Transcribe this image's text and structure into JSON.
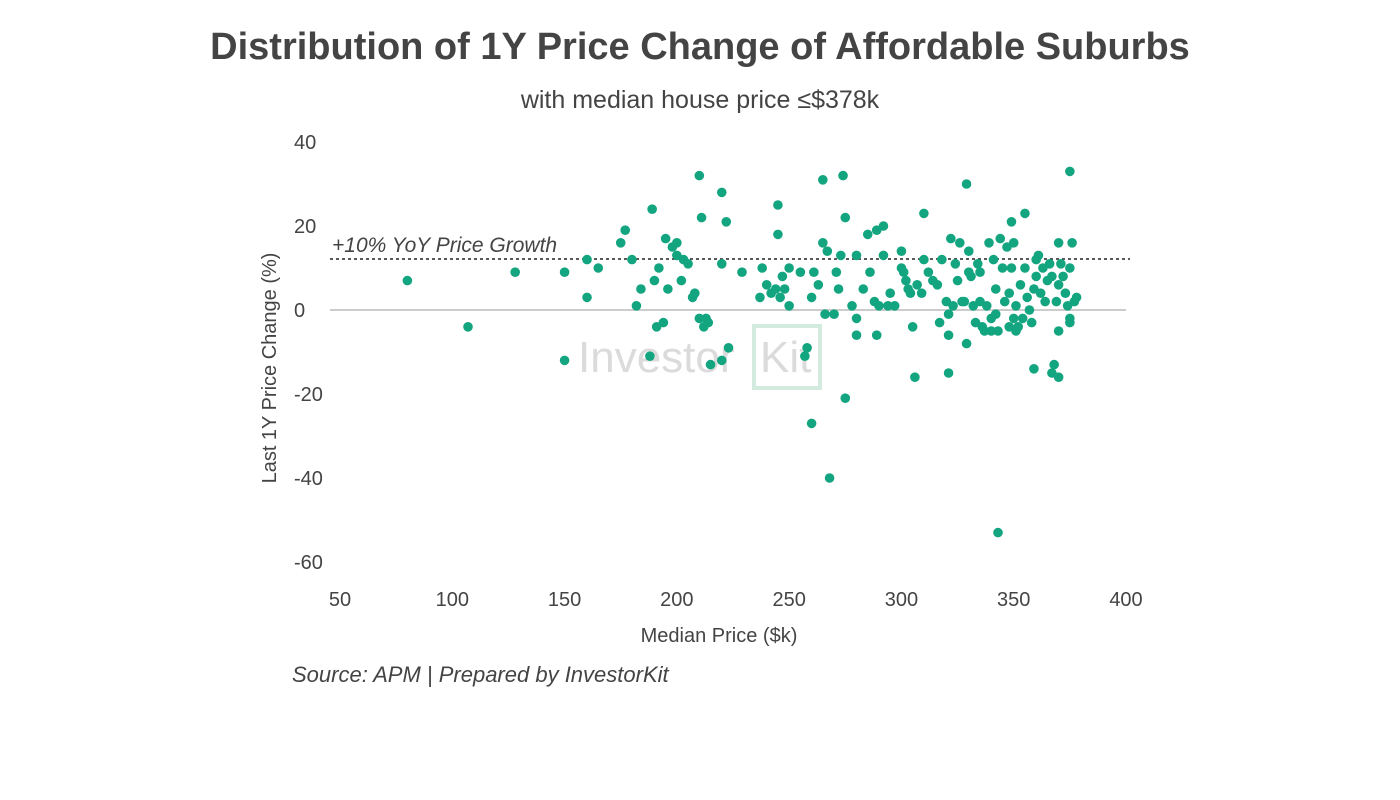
{
  "chart_data": {
    "type": "scatter",
    "title": "Distribution of 1Y Price Change of Affordable Suburbs",
    "subtitle": "with median house price ≤$378k",
    "xlabel": "Median Price ($k)",
    "ylabel": "Last 1Y Price Change (%)",
    "xlim": [
      50,
      400
    ],
    "ylim": [
      -60,
      40
    ],
    "xticks": [
      "50",
      "100",
      "150",
      "200",
      "250",
      "300",
      "350",
      "400"
    ],
    "yticks": [
      "40",
      "20",
      "0",
      "-20",
      "-40",
      "-60"
    ],
    "reference_line": {
      "y": 10,
      "label": "+10% YoY Price Growth"
    },
    "point_color": "#13a57f",
    "points": [
      [
        80,
        7
      ],
      [
        107,
        -4
      ],
      [
        128,
        9
      ],
      [
        150,
        9
      ],
      [
        150,
        -12
      ],
      [
        160,
        12
      ],
      [
        160,
        3
      ],
      [
        165,
        10
      ],
      [
        175,
        16
      ],
      [
        177,
        19
      ],
      [
        180,
        12
      ],
      [
        182,
        1
      ],
      [
        184,
        5
      ],
      [
        188,
        -11
      ],
      [
        189,
        24
      ],
      [
        190,
        7
      ],
      [
        191,
        -4
      ],
      [
        192,
        10
      ],
      [
        194,
        -3
      ],
      [
        195,
        17
      ],
      [
        196,
        5
      ],
      [
        198,
        15
      ],
      [
        200,
        16
      ],
      [
        200,
        13
      ],
      [
        202,
        7
      ],
      [
        203,
        12
      ],
      [
        205,
        11
      ],
      [
        207,
        3
      ],
      [
        208,
        4
      ],
      [
        210,
        32
      ],
      [
        210,
        -2
      ],
      [
        211,
        22
      ],
      [
        212,
        -4
      ],
      [
        213,
        -2
      ],
      [
        214,
        -3
      ],
      [
        215,
        -13
      ],
      [
        220,
        28
      ],
      [
        220,
        -12
      ],
      [
        220,
        11
      ],
      [
        222,
        21
      ],
      [
        223,
        -9
      ],
      [
        229,
        9
      ],
      [
        237,
        3
      ],
      [
        238,
        10
      ],
      [
        240,
        6
      ],
      [
        242,
        4
      ],
      [
        244,
        5
      ],
      [
        245,
        25
      ],
      [
        245,
        18
      ],
      [
        246,
        3
      ],
      [
        247,
        8
      ],
      [
        248,
        5
      ],
      [
        250,
        10
      ],
      [
        250,
        1
      ],
      [
        255,
        9
      ],
      [
        257,
        -11
      ],
      [
        258,
        -9
      ],
      [
        260,
        -27
      ],
      [
        260,
        3
      ],
      [
        261,
        9
      ],
      [
        263,
        6
      ],
      [
        265,
        31
      ],
      [
        265,
        16
      ],
      [
        266,
        -1
      ],
      [
        267,
        14
      ],
      [
        268,
        -40
      ],
      [
        270,
        -1
      ],
      [
        271,
        9
      ],
      [
        272,
        5
      ],
      [
        273,
        13
      ],
      [
        274,
        32
      ],
      [
        275,
        22
      ],
      [
        275,
        -21
      ],
      [
        278,
        1
      ],
      [
        280,
        13
      ],
      [
        280,
        -6
      ],
      [
        280,
        -2
      ],
      [
        283,
        5
      ],
      [
        285,
        18
      ],
      [
        286,
        9
      ],
      [
        288,
        2
      ],
      [
        289,
        19
      ],
      [
        289,
        -6
      ],
      [
        290,
        1
      ],
      [
        292,
        20
      ],
      [
        292,
        13
      ],
      [
        294,
        1
      ],
      [
        295,
        4
      ],
      [
        297,
        1
      ],
      [
        300,
        14
      ],
      [
        300,
        10
      ],
      [
        301,
        9
      ],
      [
        302,
        7
      ],
      [
        303,
        5
      ],
      [
        304,
        4
      ],
      [
        305,
        -4
      ],
      [
        306,
        -16
      ],
      [
        307,
        6
      ],
      [
        309,
        4
      ],
      [
        310,
        23
      ],
      [
        310,
        12
      ],
      [
        312,
        9
      ],
      [
        314,
        7
      ],
      [
        316,
        6
      ],
      [
        317,
        -3
      ],
      [
        318,
        12
      ],
      [
        320,
        2
      ],
      [
        321,
        -1
      ],
      [
        321,
        -15
      ],
      [
        321,
        -6
      ],
      [
        322,
        17
      ],
      [
        323,
        1
      ],
      [
        324,
        11
      ],
      [
        325,
        7
      ],
      [
        326,
        16
      ],
      [
        327,
        2
      ],
      [
        328,
        2
      ],
      [
        329,
        -8
      ],
      [
        329,
        30
      ],
      [
        330,
        14
      ],
      [
        330,
        9
      ],
      [
        331,
        8
      ],
      [
        332,
        1
      ],
      [
        333,
        -3
      ],
      [
        334,
        11
      ],
      [
        335,
        9
      ],
      [
        335,
        2
      ],
      [
        336,
        -4
      ],
      [
        337,
        -5
      ],
      [
        338,
        1
      ],
      [
        339,
        16
      ],
      [
        340,
        -2
      ],
      [
        340,
        -5
      ],
      [
        341,
        12
      ],
      [
        342,
        -1
      ],
      [
        342,
        5
      ],
      [
        343,
        -5
      ],
      [
        343,
        -53
      ],
      [
        344,
        17
      ],
      [
        345,
        10
      ],
      [
        346,
        2
      ],
      [
        347,
        15
      ],
      [
        348,
        4
      ],
      [
        348,
        -4
      ],
      [
        349,
        21
      ],
      [
        349,
        10
      ],
      [
        350,
        16
      ],
      [
        350,
        -2
      ],
      [
        351,
        1
      ],
      [
        351,
        -5
      ],
      [
        352,
        -4
      ],
      [
        353,
        6
      ],
      [
        354,
        -2
      ],
      [
        355,
        23
      ],
      [
        355,
        10
      ],
      [
        356,
        3
      ],
      [
        357,
        0
      ],
      [
        358,
        -3
      ],
      [
        359,
        5
      ],
      [
        359,
        -14
      ],
      [
        360,
        12
      ],
      [
        360,
        8
      ],
      [
        361,
        13
      ],
      [
        362,
        4
      ],
      [
        363,
        10
      ],
      [
        364,
        2
      ],
      [
        365,
        7
      ],
      [
        366,
        11
      ],
      [
        367,
        8
      ],
      [
        367,
        -15
      ],
      [
        368,
        -13
      ],
      [
        369,
        2
      ],
      [
        370,
        -16
      ],
      [
        370,
        16
      ],
      [
        370,
        6
      ],
      [
        370,
        -5
      ],
      [
        371,
        11
      ],
      [
        372,
        8
      ],
      [
        373,
        4
      ],
      [
        374,
        1
      ],
      [
        375,
        10
      ],
      [
        375,
        -2
      ],
      [
        375,
        -3
      ],
      [
        375,
        33
      ],
      [
        376,
        16
      ],
      [
        377,
        2
      ],
      [
        378,
        3
      ]
    ],
    "watermark": "InvestorKit",
    "source": "Source: APM | Prepared by InvestorKit"
  }
}
